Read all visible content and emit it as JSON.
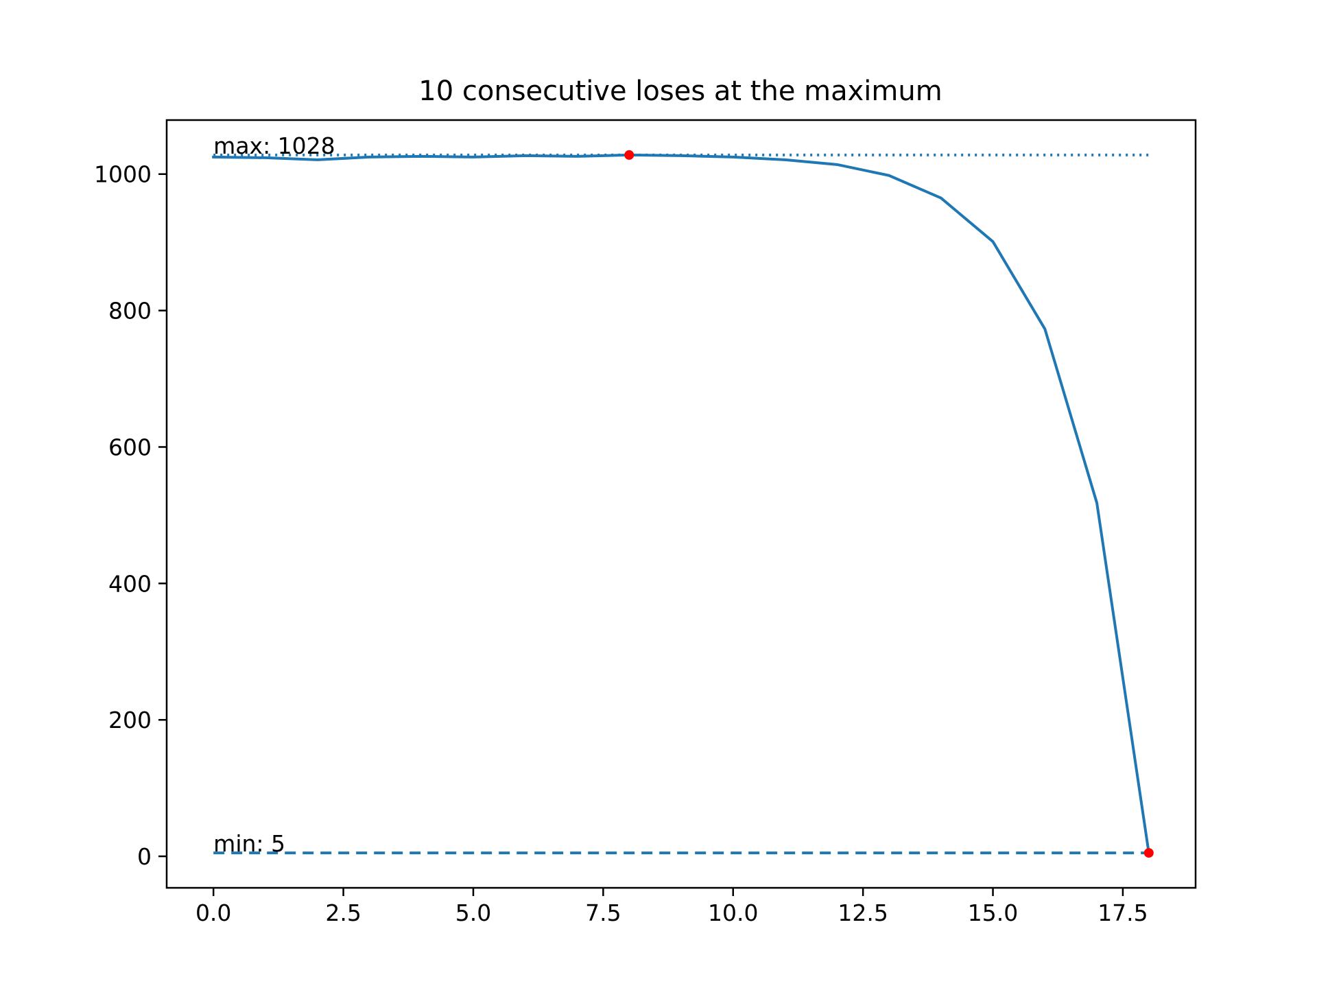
{
  "chart_data": {
    "type": "line",
    "title": "10 consecutive loses at the maximum",
    "xlabel": "",
    "ylabel": "",
    "xlim": [
      -0.9,
      18.9
    ],
    "ylim": [
      -46.2,
      1079.2
    ],
    "xticks": [
      "0.0",
      "2.5",
      "5.0",
      "7.5",
      "10.0",
      "12.5",
      "15.0",
      "17.5"
    ],
    "xtick_values": [
      0,
      2.5,
      5,
      7.5,
      10,
      12.5,
      15,
      17.5
    ],
    "yticks": [
      "0",
      "200",
      "400",
      "600",
      "800",
      "1000"
    ],
    "ytick_values": [
      0,
      200,
      400,
      600,
      800,
      1000
    ],
    "grid": false,
    "series": [
      {
        "color": "#1f77b4",
        "x": [
          0,
          1,
          2,
          3,
          4,
          5,
          6,
          7,
          8,
          9,
          10,
          11,
          12,
          13,
          14,
          15,
          16,
          17,
          18
        ],
        "y": [
          1025,
          1024,
          1021,
          1025,
          1026,
          1025,
          1027,
          1026,
          1028,
          1027,
          1025,
          1021,
          1014,
          998,
          965,
          901,
          773,
          518,
          5
        ]
      }
    ],
    "reference_lines": [
      {
        "value": 1028,
        "style": "dotted",
        "color": "#1f77b4",
        "x_from": 0,
        "x_to": 18
      },
      {
        "value": 5,
        "style": "dashed",
        "color": "#1f77b4",
        "x_from": 0,
        "x_to": 18
      }
    ],
    "highlight_points": [
      {
        "x": 8,
        "y": 1028,
        "color": "#ff0000"
      },
      {
        "x": 18,
        "y": 5,
        "color": "#ff0000"
      }
    ],
    "annotations": [
      {
        "text": "max: 1028",
        "x": 0,
        "y": 1028
      },
      {
        "text": "min: 5",
        "x": 0,
        "y": 5
      }
    ]
  }
}
